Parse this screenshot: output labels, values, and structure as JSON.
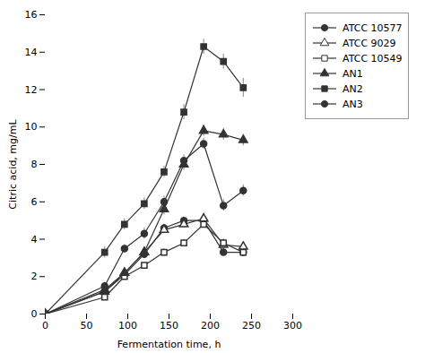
{
  "chart_data": {
    "type": "line",
    "xlabel": "Fermentation time, h",
    "ylabel": "Citric acid, mg/mL",
    "x": [
      0,
      72,
      96,
      120,
      144,
      168,
      192,
      216,
      240
    ],
    "series": [
      {
        "name": "ATCC 10577",
        "color": "#333333",
        "marker": "circle",
        "values": [
          0,
          1.2,
          2.1,
          3.2,
          4.6,
          5.0,
          5.0,
          3.3,
          3.3
        ],
        "yerr": [
          0,
          0.15,
          0.15,
          0.15,
          0.2,
          0.2,
          0.2,
          0.2,
          0.15
        ]
      },
      {
        "name": "ATCC 9029",
        "color": "#333333",
        "marker": "triangle-open",
        "values": [
          0,
          1.3,
          2.2,
          3.3,
          4.5,
          4.8,
          5.1,
          3.7,
          3.6
        ],
        "yerr": [
          0,
          0.15,
          0.15,
          0.15,
          0.2,
          0.2,
          0.2,
          0.2,
          0.15
        ]
      },
      {
        "name": "ATCC 10549",
        "color": "#333333",
        "marker": "square-open",
        "values": [
          0,
          0.9,
          2.0,
          2.6,
          3.3,
          3.8,
          4.8,
          3.8,
          3.3
        ],
        "yerr": [
          0,
          0.15,
          0.15,
          0.15,
          0.2,
          0.2,
          0.2,
          0.2,
          0.15
        ]
      },
      {
        "name": "AN1",
        "color": "#333333",
        "marker": "triangle",
        "values": [
          0,
          1.2,
          2.2,
          3.3,
          5.6,
          8.0,
          9.8,
          9.6,
          9.3
        ],
        "yerr": [
          0,
          0.15,
          0.2,
          0.2,
          0.3,
          0.3,
          0.3,
          0.3,
          0.3
        ]
      },
      {
        "name": "AN2",
        "color": "#333333",
        "marker": "square",
        "values": [
          0,
          3.3,
          4.8,
          5.9,
          7.6,
          10.8,
          14.3,
          13.5,
          12.1
        ],
        "yerr": [
          0,
          0.3,
          0.3,
          0.3,
          0.3,
          0.4,
          0.4,
          0.4,
          0.5
        ]
      },
      {
        "name": "AN3",
        "color": "#333333",
        "marker": "circle",
        "values": [
          0,
          1.5,
          3.5,
          4.3,
          6.0,
          8.2,
          9.1,
          5.8,
          6.6
        ],
        "yerr": [
          0,
          0.2,
          0.2,
          0.3,
          0.3,
          0.3,
          0.3,
          0.3,
          0.3
        ]
      }
    ],
    "xlim": [
      0,
      300
    ],
    "ylim": [
      0,
      16
    ],
    "xticks": [
      0,
      50,
      100,
      150,
      200,
      250,
      300
    ],
    "yticks": [
      0,
      2,
      4,
      6,
      8,
      10,
      12,
      14,
      16
    ],
    "legend": "right"
  }
}
